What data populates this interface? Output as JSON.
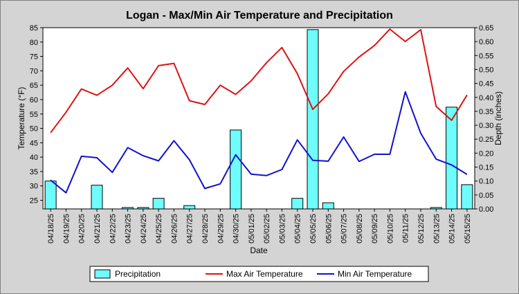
{
  "chart_data": {
    "type": "bar",
    "title": "Logan - Max/Min Air Temperature and Precipitation",
    "xlabel": "Date",
    "ylabel": "Temperature (°F)",
    "y2label": "Depth (inches)",
    "ylim": [
      22,
      85
    ],
    "y2lim": [
      0,
      0.65
    ],
    "yticks": [
      25,
      30,
      35,
      40,
      45,
      50,
      55,
      60,
      65,
      70,
      75,
      80,
      85
    ],
    "y2ticks": [
      "0.00",
      "0.05",
      "0.10",
      "0.15",
      "0.20",
      "0.25",
      "0.30",
      "0.35",
      "0.40",
      "0.45",
      "0.50",
      "0.55",
      "0.60",
      "0.65"
    ],
    "categories": [
      "04/18/25",
      "04/19/25",
      "04/20/25",
      "04/21/25",
      "04/22/25",
      "04/23/25",
      "04/24/25",
      "04/25/25",
      "04/26/25",
      "04/27/25",
      "04/28/25",
      "04/29/25",
      "04/30/25",
      "05/01/25",
      "05/02/25",
      "05/03/25",
      "05/04/25",
      "05/05/25",
      "05/06/25",
      "05/07/25",
      "05/08/25",
      "05/09/25",
      "05/10/25",
      "05/11/25",
      "05/12/25",
      "05/13/25",
      "05/14/25",
      "05/15/25"
    ],
    "grid": false,
    "legend_position": "bottom",
    "series": [
      {
        "name": "Precipitation",
        "kind": "bar",
        "axis": "right",
        "color": "#6efcfc",
        "values": [
          0.1,
          0,
          0,
          0.085,
          0,
          0.005,
          0.005,
          0.038,
          0,
          0.012,
          0,
          0,
          0.283,
          0,
          0,
          0,
          0.038,
          0.643,
          0.022,
          0,
          0,
          0,
          0,
          0,
          0,
          0.005,
          0.365,
          0.087
        ]
      },
      {
        "name": "Max Air Temperature",
        "kind": "line",
        "axis": "left",
        "color": "#e01010",
        "values": [
          48.5,
          55.6,
          63.7,
          61.5,
          65.0,
          71.0,
          63.8,
          71.8,
          72.6,
          59.6,
          58.3,
          65.0,
          61.8,
          66.5,
          72.8,
          78.1,
          69.0,
          56.6,
          62.0,
          69.8,
          74.8,
          78.8,
          84.5,
          80.2,
          84.3,
          57.6,
          52.8,
          61.6
        ]
      },
      {
        "name": "Min Air Temperature",
        "kind": "line",
        "axis": "left",
        "color": "#1010d0",
        "values": [
          32.0,
          27.6,
          40.3,
          39.8,
          34.7,
          43.3,
          40.5,
          38.7,
          45.7,
          39.1,
          29.1,
          30.7,
          40.8,
          34.1,
          33.6,
          35.7,
          46.0,
          38.9,
          38.6,
          47.0,
          38.5,
          41.0,
          41.0,
          62.7,
          48.3,
          39.3,
          37.3,
          34.0
        ]
      }
    ]
  }
}
